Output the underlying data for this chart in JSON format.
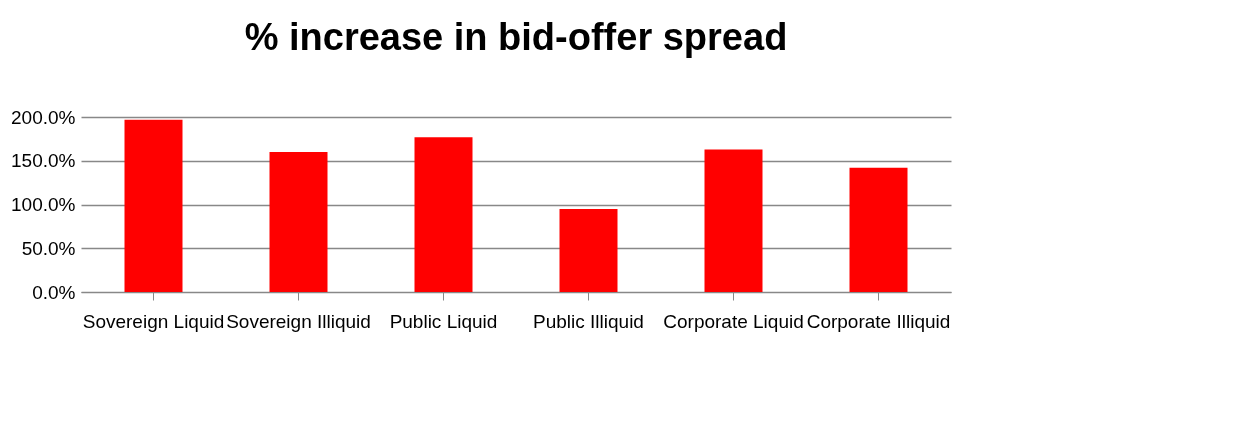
{
  "chart_data": {
    "type": "bar",
    "title": "% increase in bid-offer spread",
    "categories": [
      "Sovereign Liquid",
      "Sovereign Illiquid",
      "Public Liquid",
      "Public Illiquid",
      "Corporate Liquid",
      "Corporate Illiquid"
    ],
    "values": [
      197,
      160,
      177,
      95,
      163,
      142
    ],
    "color": "#ff0000",
    "ylim": [
      0,
      200
    ],
    "yticks": [
      {
        "value": 0,
        "label": "0.0%"
      },
      {
        "value": 50,
        "label": "50.0%"
      },
      {
        "value": 100,
        "label": "100.0%"
      },
      {
        "value": 150,
        "label": "150.0%"
      },
      {
        "value": 200,
        "label": "200.0%"
      }
    ],
    "grid": "y"
  }
}
